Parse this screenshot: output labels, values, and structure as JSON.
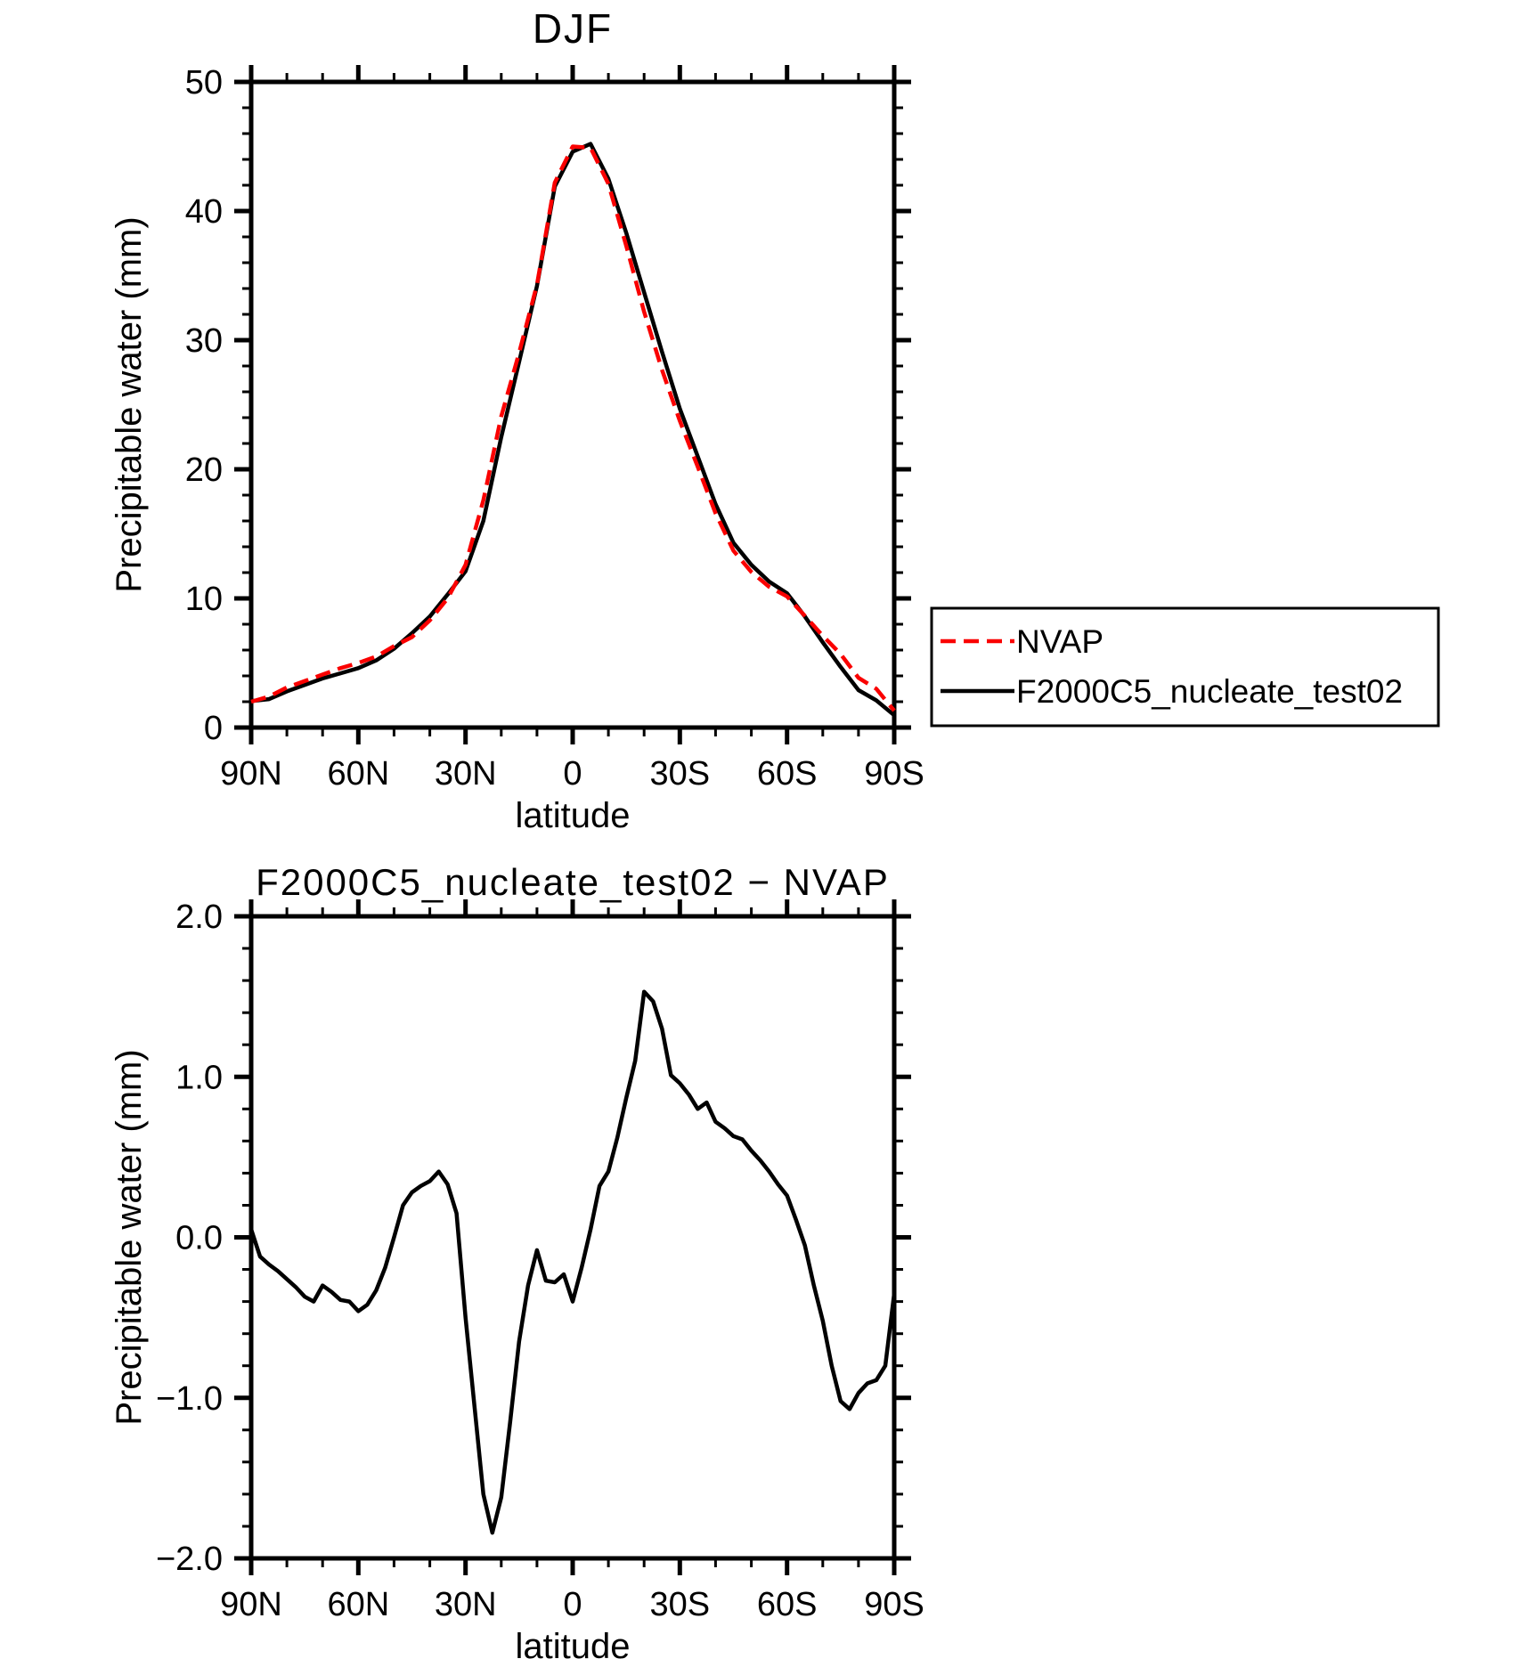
{
  "figure": {
    "background": "#ffffff",
    "line_black": "#000000",
    "line_red": "#fa0000",
    "description": "Two stacked zonal-mean line plots of precipitable water vs latitude"
  },
  "chart_data": [
    {
      "type": "line",
      "title": "DJF",
      "xlabel": "latitude",
      "ylabel": "Precipitable water (mm)",
      "xlim": [
        90,
        -90
      ],
      "ylim": [
        0,
        50
      ],
      "grid": false,
      "xticks": {
        "values": [
          90,
          60,
          30,
          0,
          -30,
          -60,
          -90
        ],
        "labels": [
          "90N",
          "60N",
          "30N",
          "0",
          "30S",
          "60S",
          "90S"
        ],
        "minor_step": 10
      },
      "yticks": {
        "values": [
          0,
          10,
          20,
          30,
          40,
          50
        ],
        "labels": [
          "0",
          "10",
          "20",
          "30",
          "40",
          "50"
        ],
        "minor_step": 2
      },
      "x": [
        90,
        85,
        80,
        75,
        70,
        65,
        60,
        55,
        50,
        45,
        40,
        35,
        30,
        25,
        20,
        15,
        10,
        5,
        0,
        -5,
        -10,
        -15,
        -20,
        -25,
        -30,
        -35,
        -40,
        -45,
        -50,
        -55,
        -60,
        -65,
        -70,
        -75,
        -80,
        -85,
        -90
      ],
      "series": [
        {
          "name": "NVAP",
          "color": "#fa0000",
          "dashed": true,
          "values": [
            2.0,
            2.4,
            3.1,
            3.6,
            4.1,
            4.6,
            5.0,
            5.5,
            6.3,
            7.0,
            8.3,
            10.0,
            12.6,
            17.6,
            24.1,
            29.0,
            34.3,
            42.2,
            45.0,
            44.9,
            42.1,
            37.3,
            32.2,
            27.7,
            23.75,
            20.2,
            16.6,
            13.7,
            12.05,
            10.9,
            10.15,
            8.65,
            7.1,
            5.7,
            3.85,
            3.0,
            1.3
          ]
        },
        {
          "name": "F2000C5_nucleate_test02",
          "color": "#000000",
          "dashed": false,
          "values": [
            2.05,
            2.2,
            2.8,
            3.3,
            3.8,
            4.2,
            4.6,
            5.2,
            6.1,
            7.3,
            8.6,
            10.3,
            12.1,
            16.0,
            22.5,
            28.3,
            34.2,
            41.9,
            44.6,
            45.2,
            42.5,
            38.3,
            33.7,
            29.1,
            24.7,
            21.0,
            17.3,
            14.3,
            12.6,
            11.3,
            10.4,
            8.6,
            6.6,
            4.7,
            2.9,
            2.1,
            0.95
          ]
        }
      ],
      "legend": {
        "position": "outside-right",
        "entries": [
          "NVAP",
          "F2000C5_nucleate_test02"
        ]
      }
    },
    {
      "type": "line",
      "title": "F2000C5_nucleate_test02 − NVAP",
      "xlabel": "latitude",
      "ylabel": "Precipitable water (mm)",
      "xlim": [
        90,
        -90
      ],
      "ylim": [
        -2,
        2
      ],
      "grid": false,
      "xticks": {
        "values": [
          90,
          60,
          30,
          0,
          -30,
          -60,
          -90
        ],
        "labels": [
          "90N",
          "60N",
          "30N",
          "0",
          "30S",
          "60S",
          "90S"
        ],
        "minor_step": 10
      },
      "yticks": {
        "values": [
          -2,
          -1,
          0,
          1,
          2
        ],
        "labels": [
          "−2.0",
          "−1.0",
          "0.0",
          "1.0",
          "2.0"
        ],
        "minor_step": 0.2
      },
      "x": [
        90,
        87.5,
        85,
        82.5,
        80,
        77.5,
        75,
        72.5,
        70,
        67.5,
        65,
        62.5,
        60,
        57.5,
        55,
        52.5,
        50,
        47.5,
        45,
        42.5,
        40,
        37.5,
        35,
        32.5,
        30,
        27.5,
        25,
        22.5,
        20,
        17.5,
        15,
        12.5,
        10,
        7.5,
        5,
        2.5,
        0,
        -2.5,
        -5,
        -7.5,
        -10,
        -12.5,
        -15,
        -17.5,
        -20,
        -22.5,
        -25,
        -27.5,
        -30,
        -32.5,
        -35,
        -37.5,
        -40,
        -42.5,
        -45,
        -47.5,
        -50,
        -52.5,
        -55,
        -57.5,
        -60,
        -62.5,
        -65,
        -67.5,
        -70,
        -72.5,
        -75,
        -77.5,
        -80,
        -82.5,
        -85,
        -87.5,
        -90
      ],
      "series": [
        {
          "name": "F2000C5_nucleate_test02 − NVAP",
          "color": "#000000",
          "dashed": false,
          "values": [
            0.05,
            -0.12,
            -0.17,
            -0.21,
            -0.26,
            -0.31,
            -0.37,
            -0.4,
            -0.3,
            -0.34,
            -0.39,
            -0.4,
            -0.46,
            -0.42,
            -0.33,
            -0.19,
            0.0,
            0.2,
            0.28,
            0.32,
            0.35,
            0.41,
            0.33,
            0.15,
            -0.5,
            -1.05,
            -1.6,
            -1.84,
            -1.62,
            -1.15,
            -0.65,
            -0.3,
            -0.08,
            -0.27,
            -0.28,
            -0.23,
            -0.4,
            -0.19,
            0.05,
            0.32,
            0.41,
            0.62,
            0.87,
            1.1,
            1.53,
            1.47,
            1.3,
            1.01,
            0.96,
            0.89,
            0.8,
            0.84,
            0.72,
            0.68,
            0.63,
            0.61,
            0.54,
            0.48,
            0.41,
            0.33,
            0.26,
            0.11,
            -0.05,
            -0.3,
            -0.52,
            -0.8,
            -1.02,
            -1.07,
            -0.97,
            -0.91,
            -0.89,
            -0.8,
            -0.35
          ]
        }
      ]
    }
  ]
}
